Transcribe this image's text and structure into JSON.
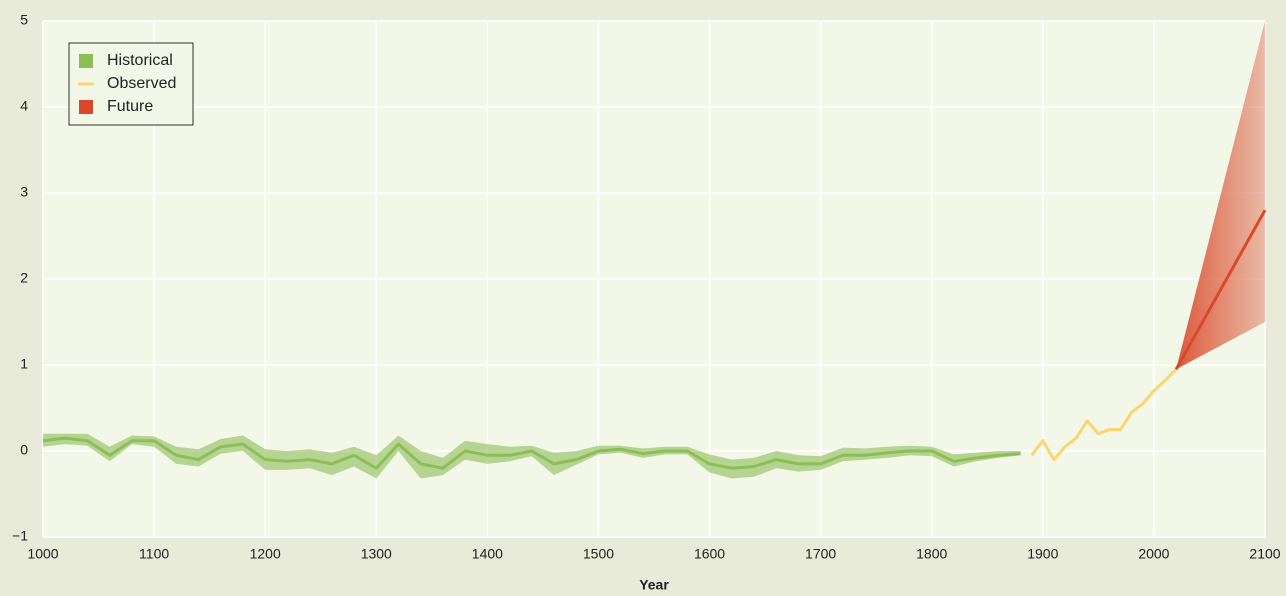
{
  "chart_data": {
    "type": "line",
    "x_label": "Year",
    "xlim": [
      1000,
      2100
    ],
    "xticks": [
      1000,
      1100,
      1200,
      1300,
      1400,
      1500,
      1600,
      1700,
      1800,
      1900,
      2000,
      2100
    ],
    "ylim": [
      -1,
      5
    ],
    "yticks": [
      {
        "value": -1,
        "label": "−1"
      },
      0,
      1,
      2,
      3,
      4,
      5
    ],
    "grid": true,
    "legend": "upper left",
    "series": [
      {
        "name": "Historical",
        "color": "#8dbd58",
        "x": [
          1000,
          1020,
          1040,
          1060,
          1080,
          1100,
          1120,
          1140,
          1160,
          1180,
          1200,
          1220,
          1240,
          1260,
          1280,
          1300,
          1320,
          1340,
          1360,
          1380,
          1400,
          1420,
          1440,
          1460,
          1480,
          1500,
          1520,
          1540,
          1560,
          1580,
          1600,
          1620,
          1640,
          1660,
          1680,
          1700,
          1720,
          1740,
          1760,
          1780,
          1800,
          1820,
          1840,
          1860,
          1880
        ],
        "values": [
          0.12,
          0.15,
          0.12,
          -0.05,
          0.12,
          0.12,
          -0.05,
          -0.1,
          0.05,
          0.08,
          -0.1,
          -0.12,
          -0.1,
          -0.15,
          -0.05,
          -0.2,
          0.08,
          -0.15,
          -0.2,
          0.0,
          -0.05,
          -0.05,
          0.0,
          -0.15,
          -0.1,
          0.0,
          0.02,
          -0.03,
          0.0,
          0.0,
          -0.15,
          -0.2,
          -0.18,
          -0.1,
          -0.15,
          -0.15,
          -0.05,
          -0.05,
          -0.02,
          0.0,
          0.0,
          -0.12,
          -0.08,
          -0.05,
          -0.03
        ],
        "lower": [
          0.05,
          0.08,
          0.06,
          -0.12,
          0.08,
          0.05,
          -0.15,
          -0.18,
          -0.03,
          0.0,
          -0.22,
          -0.22,
          -0.2,
          -0.28,
          -0.18,
          -0.32,
          0.0,
          -0.32,
          -0.28,
          -0.1,
          -0.15,
          -0.12,
          -0.06,
          -0.28,
          -0.16,
          -0.04,
          -0.02,
          -0.08,
          -0.04,
          -0.04,
          -0.25,
          -0.32,
          -0.3,
          -0.2,
          -0.24,
          -0.22,
          -0.12,
          -0.1,
          -0.08,
          -0.05,
          -0.06,
          -0.18,
          -0.12,
          -0.08,
          -0.05
        ],
        "upper": [
          0.2,
          0.2,
          0.2,
          0.05,
          0.18,
          0.17,
          0.05,
          0.02,
          0.14,
          0.18,
          0.02,
          0.0,
          0.02,
          -0.02,
          0.05,
          -0.05,
          0.18,
          0.0,
          -0.08,
          0.12,
          0.08,
          0.05,
          0.06,
          -0.02,
          0.0,
          0.06,
          0.06,
          0.03,
          0.05,
          0.05,
          -0.04,
          -0.1,
          -0.08,
          0.0,
          -0.05,
          -0.06,
          0.04,
          0.03,
          0.05,
          0.06,
          0.05,
          -0.04,
          -0.02,
          0.0,
          0.0
        ]
      },
      {
        "name": "Observed",
        "color": "#fcd572",
        "x": [
          1890,
          1900,
          1910,
          1920,
          1930,
          1940,
          1950,
          1960,
          1970,
          1980,
          1990,
          2000,
          2010,
          2020
        ],
        "values": [
          -0.05,
          0.12,
          -0.1,
          0.05,
          0.15,
          0.35,
          0.2,
          0.25,
          0.25,
          0.45,
          0.55,
          0.7,
          0.82,
          0.95
        ]
      },
      {
        "name": "Future",
        "color": "#d9482a",
        "x": [
          2020,
          2100
        ],
        "values": [
          0.95,
          2.8
        ],
        "lower": [
          0.95,
          1.5
        ],
        "upper": [
          0.95,
          5.0
        ]
      }
    ]
  }
}
